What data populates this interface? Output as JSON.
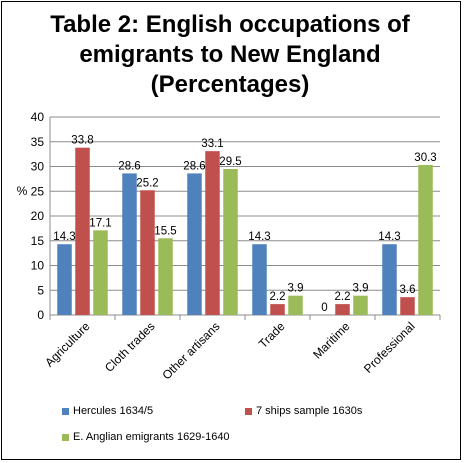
{
  "chart_data": {
    "type": "bar",
    "title_lines": [
      "Table 2: English occupations of",
      "emigrants to New England",
      "(Percentages)"
    ],
    "ylabel": "%",
    "xlabel": "",
    "ylim": [
      0,
      40
    ],
    "yticks": [
      0,
      5,
      10,
      15,
      20,
      25,
      30,
      35,
      40
    ],
    "grid": true,
    "legend_position": "bottom",
    "categories": [
      "Agriculture",
      "Cloth trades",
      "Other artisans",
      "Trade",
      "Maritime",
      "Professional"
    ],
    "series": [
      {
        "name": "Hercules 1634/5",
        "color": "#4F81BD",
        "values": [
          14.3,
          28.6,
          28.6,
          14.3,
          0,
          14.3
        ]
      },
      {
        "name": "7 ships sample 1630s",
        "color": "#C0504D",
        "values": [
          33.8,
          25.2,
          33.1,
          2.2,
          2.2,
          3.6
        ]
      },
      {
        "name": "E. Anglian emigrants 1629-1640",
        "color": "#9BBB59",
        "values": [
          17.1,
          15.5,
          29.5,
          3.9,
          3.9,
          30.3
        ]
      }
    ]
  }
}
